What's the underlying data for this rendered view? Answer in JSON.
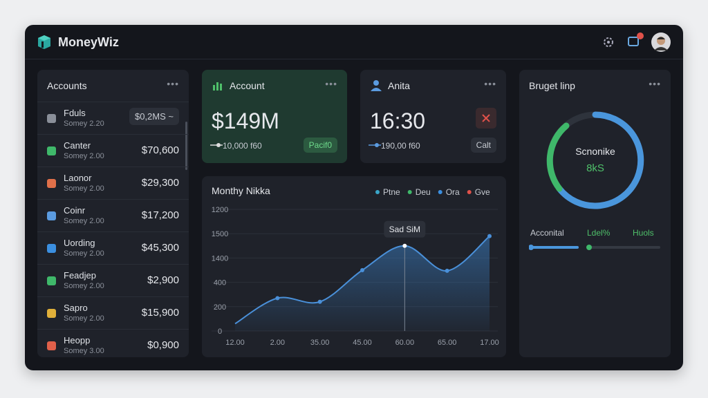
{
  "header": {
    "brand": "MoneyWiz"
  },
  "accounts": {
    "title": "Accounts",
    "items": [
      {
        "name": "Fduls",
        "sub": "Somey 2.20",
        "amount": "$0,2MS ~"
      },
      {
        "name": "Canter",
        "sub": "Somey 2.00",
        "amount": "$70,600"
      },
      {
        "name": "Laonor",
        "sub": "Somey 2.00",
        "amount": "$29,300"
      },
      {
        "name": "Coinr",
        "sub": "Somey 2.00",
        "amount": "$17,200"
      },
      {
        "name": "Uording",
        "sub": "Somey 2.00",
        "amount": "$45,300"
      },
      {
        "name": "Feadjep",
        "sub": "Somey 2.00",
        "amount": "$2,900"
      },
      {
        "name": "Sapro",
        "sub": "Somey 2.00",
        "amount": "$15,900"
      },
      {
        "name": "Heopp",
        "sub": "Somey 3.00",
        "amount": "$0,900"
      }
    ]
  },
  "account_card": {
    "title": "Account",
    "value": "$149M",
    "sub": "10,000 f60",
    "badge": "Pacif0"
  },
  "time_card": {
    "title": "Anita",
    "value": "16:30",
    "sub": "190,00 f60",
    "badge": "Calt"
  },
  "budget": {
    "title": "Bruget linp",
    "center_title": "Scnonike",
    "center_value": "8kS",
    "labels": [
      "Acconital",
      "Ldel%",
      "Huols"
    ]
  },
  "chart_data": {
    "type": "line",
    "title": "Monthy Nikka",
    "legend": [
      {
        "name": "Ptne",
        "color": "#3aa6c9"
      },
      {
        "name": "Deu",
        "color": "#3fb86a"
      },
      {
        "name": "Ora",
        "color": "#3b8fe0"
      },
      {
        "name": "Gve",
        "color": "#e0514a"
      }
    ],
    "categories": [
      "12.00",
      "2.00",
      "35.00",
      "45.00",
      "60.00",
      "65.00",
      "17.00"
    ],
    "series": [
      {
        "name": "Ptne",
        "color": "#4a90d9",
        "values": [
          60,
          270,
          240,
          500,
          700,
          495,
          780
        ]
      }
    ],
    "ylim": [
      0,
      1000
    ],
    "yticks": [
      0,
      200,
      400,
      {
        "value": 600,
        "label": "1400"
      },
      {
        "value": 800,
        "label": "1500"
      },
      {
        "value": 1000,
        "label": "1200"
      }
    ],
    "grid": true,
    "annotation": {
      "index": 4,
      "text": "Sad SiM"
    }
  }
}
